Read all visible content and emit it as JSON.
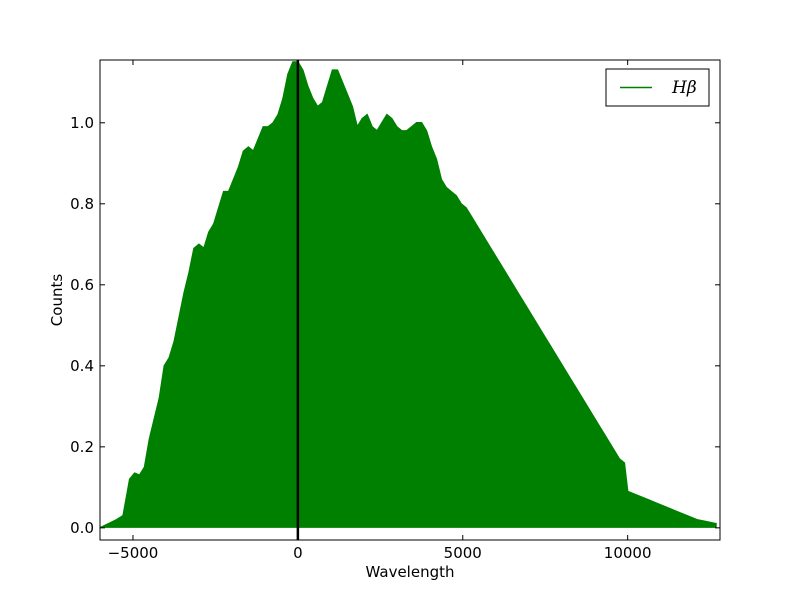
{
  "chart_data": {
    "type": "area",
    "title": "",
    "xlabel": "Wavelength",
    "ylabel": "Counts",
    "xlim": [
      -6000,
      12800
    ],
    "ylim": [
      -0.03,
      1.155
    ],
    "xticks": [
      -5000,
      0,
      5000,
      10000
    ],
    "xtick_labels": [
      "−5000",
      "0",
      "5000",
      "10000"
    ],
    "yticks": [
      0.0,
      0.2,
      0.4,
      0.6,
      0.8,
      1.0
    ],
    "ytick_labels": [
      "0.0",
      "0.2",
      "0.4",
      "0.6",
      "0.8",
      "1.0"
    ],
    "grid": false,
    "legend_position": "top-right",
    "series": [
      {
        "name": "Hβ",
        "color": "#008000",
        "x": [
          -6000,
          -5500,
          -5300,
          -5100,
          -4950,
          -4800,
          -4650,
          -4500,
          -4350,
          -4200,
          -4050,
          -3900,
          -3750,
          -3600,
          -3450,
          -3300,
          -3150,
          -3000,
          -2850,
          -2700,
          -2550,
          -2400,
          -2250,
          -2100,
          -1950,
          -1800,
          -1650,
          -1500,
          -1350,
          -1200,
          -1050,
          -900,
          -750,
          -600,
          -450,
          -300,
          -150,
          0,
          150,
          300,
          450,
          600,
          750,
          900,
          1050,
          1200,
          1350,
          1500,
          1650,
          1800,
          1950,
          2100,
          2250,
          2400,
          2550,
          2700,
          2850,
          3000,
          3150,
          3300,
          3450,
          3600,
          3750,
          3900,
          4050,
          4200,
          4350,
          4500,
          4650,
          4800,
          4950,
          5100,
          5250,
          5400,
          5550,
          5700,
          5850,
          6000,
          6150,
          6300,
          6450,
          6600,
          6750,
          6900,
          7050,
          7200,
          7350,
          7500,
          7650,
          7800,
          7950,
          8100,
          8250,
          8400,
          8550,
          8700,
          8850,
          9000,
          9150,
          9300,
          9450,
          9600,
          9750,
          9900,
          10000,
          10300,
          10600,
          10900,
          11200,
          11500,
          11800,
          12100,
          12400,
          12700
        ],
        "y": [
          0.0,
          0.02,
          0.03,
          0.12,
          0.135,
          0.13,
          0.15,
          0.22,
          0.27,
          0.32,
          0.4,
          0.42,
          0.46,
          0.52,
          0.58,
          0.63,
          0.69,
          0.7,
          0.69,
          0.73,
          0.75,
          0.79,
          0.83,
          0.83,
          0.86,
          0.89,
          0.93,
          0.94,
          0.93,
          0.96,
          0.99,
          0.99,
          1.0,
          1.02,
          1.06,
          1.12,
          1.15,
          1.15,
          1.13,
          1.09,
          1.06,
          1.04,
          1.05,
          1.09,
          1.13,
          1.13,
          1.1,
          1.07,
          1.04,
          0.99,
          1.01,
          1.02,
          0.99,
          0.98,
          1.0,
          1.02,
          1.01,
          0.99,
          0.98,
          0.98,
          0.99,
          1.0,
          1.0,
          0.98,
          0.94,
          0.91,
          0.86,
          0.84,
          0.83,
          0.82,
          0.8,
          0.79,
          0.77,
          0.75,
          0.73,
          0.71,
          0.69,
          0.67,
          0.65,
          0.63,
          0.61,
          0.59,
          0.57,
          0.55,
          0.53,
          0.51,
          0.49,
          0.47,
          0.45,
          0.43,
          0.41,
          0.39,
          0.37,
          0.35,
          0.33,
          0.31,
          0.29,
          0.27,
          0.25,
          0.23,
          0.21,
          0.19,
          0.17,
          0.16,
          0.09,
          0.08,
          0.07,
          0.06,
          0.05,
          0.04,
          0.03,
          0.02,
          0.015,
          0.01
        ]
      }
    ],
    "vline": {
      "x": 0,
      "color": "#000000"
    }
  }
}
